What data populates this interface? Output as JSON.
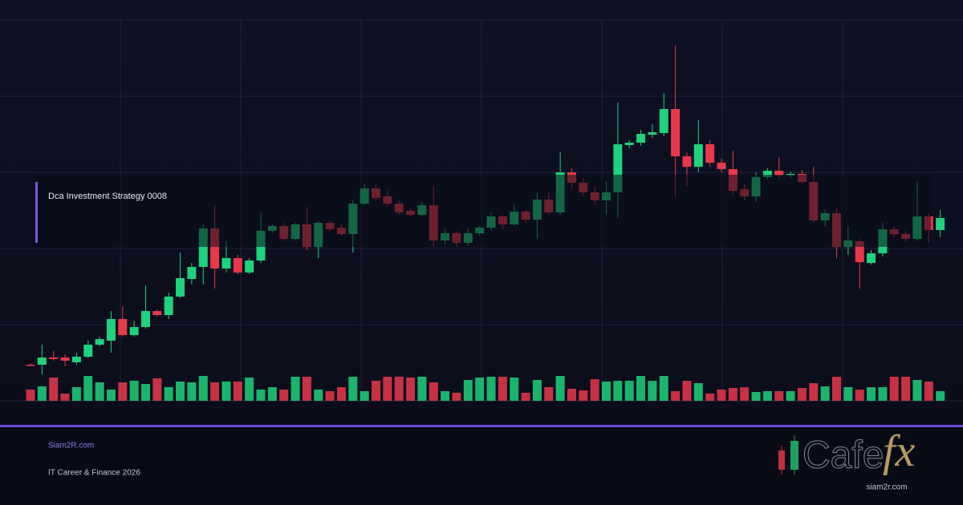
{
  "chart_data": {
    "type": "candlestick",
    "up_color": "#1fd27c",
    "down_color": "#e8394b",
    "ylim": [
      0,
      475
    ],
    "yticks": [
      0,
      95,
      190,
      285,
      380,
      475
    ],
    "grid": true,
    "open": [
      45,
      45,
      54,
      54,
      48,
      55,
      70,
      75,
      102,
      82,
      92,
      112,
      107,
      130,
      152,
      167,
      215,
      165,
      178,
      160,
      175,
      212,
      218,
      202,
      220,
      192,
      222,
      216,
      208,
      246,
      265,
      255,
      246,
      237,
      232,
      244,
      200,
      209,
      197,
      209,
      216,
      230,
      220,
      236,
      226,
      251,
      235,
      285,
      272,
      260,
      250,
      260,
      319,
      322,
      332,
      334,
      364,
      305,
      292,
      320,
      297,
      289,
      264,
      255,
      279,
      287,
      282,
      283,
      273,
      225,
      234,
      192,
      199,
      172,
      184,
      214,
      208,
      202,
      230,
      213
    ],
    "close": [
      44,
      54,
      52,
      50,
      55,
      70,
      77,
      102,
      82,
      92,
      112,
      107,
      130,
      153,
      167,
      215,
      165,
      178,
      160,
      175,
      212,
      218,
      202,
      220,
      192,
      222,
      214,
      208,
      246,
      265,
      253,
      246,
      235,
      232,
      244,
      200,
      209,
      197,
      209,
      216,
      230,
      220,
      236,
      226,
      251,
      235,
      285,
      272,
      260,
      250,
      260,
      320,
      322,
      333,
      335,
      364,
      305,
      292,
      320,
      297,
      289,
      262,
      255,
      279,
      287,
      281,
      283,
      273,
      225,
      234,
      192,
      200,
      173,
      184,
      214,
      208,
      202,
      230,
      213,
      228
    ],
    "high": [
      47,
      70,
      62,
      58,
      60,
      75,
      80,
      112,
      118,
      100,
      144,
      114,
      135,
      185,
      172,
      220,
      243,
      200,
      182,
      178,
      235,
      220,
      222,
      222,
      242,
      225,
      225,
      220,
      250,
      270,
      270,
      262,
      250,
      240,
      248,
      268,
      215,
      212,
      215,
      218,
      235,
      232,
      245,
      238,
      260,
      260,
      310,
      290,
      278,
      268,
      274,
      372,
      325,
      338,
      345,
      384,
      443,
      310,
      350,
      325,
      302,
      312,
      270,
      285,
      290,
      304,
      286,
      288,
      292,
      238,
      240,
      218,
      202,
      188,
      222,
      217,
      212,
      274,
      234,
      238
    ],
    "low": [
      43,
      33,
      50,
      43,
      45,
      53,
      68,
      60,
      80,
      80,
      90,
      105,
      102,
      128,
      145,
      145,
      140,
      160,
      158,
      158,
      172,
      210,
      200,
      200,
      188,
      178,
      212,
      206,
      185,
      244,
      250,
      242,
      232,
      230,
      230,
      192,
      195,
      192,
      193,
      206,
      212,
      214,
      218,
      222,
      202,
      232,
      232,
      264,
      255,
      244,
      232,
      228,
      315,
      318,
      328,
      330,
      254,
      268,
      285,
      292,
      285,
      258,
      250,
      248,
      276,
      278,
      278,
      270,
      222,
      218,
      178,
      182,
      140,
      170,
      180,
      204,
      198,
      200,
      197,
      204
    ],
    "volume": [
      14,
      18,
      29,
      9,
      17,
      31,
      23,
      14,
      23,
      25,
      21,
      28,
      17,
      24,
      23,
      31,
      23,
      24,
      24,
      29,
      14,
      17,
      14,
      30,
      30,
      14,
      12,
      17,
      30,
      12,
      25,
      30,
      30,
      29,
      30,
      23,
      12,
      10,
      26,
      29,
      30,
      30,
      29,
      10,
      26,
      17,
      31,
      15,
      13,
      27,
      24,
      25,
      25,
      31,
      25,
      31,
      12,
      25,
      22,
      9,
      14,
      16,
      17,
      11,
      12,
      12,
      12,
      16,
      22,
      18,
      30,
      17,
      14,
      17,
      17,
      30,
      30,
      26,
      24,
      12
    ]
  },
  "banner": {
    "title": "Dca Investment Strategy 0008"
  },
  "footer": {
    "site": "Siam2R.com",
    "tagline": "IT Career & Finance 2026"
  },
  "logo": {
    "word": "Cafe",
    "mark": "fx",
    "url": "siam2r.com"
  }
}
